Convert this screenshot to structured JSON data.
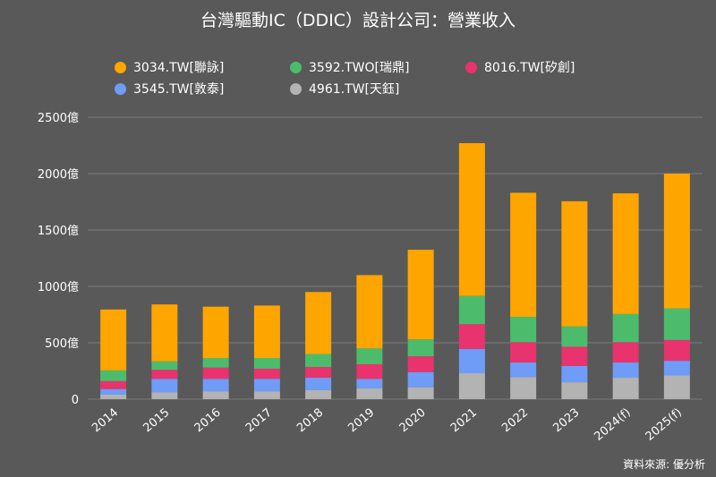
{
  "chart_data": {
    "type": "bar",
    "stacked": true,
    "title": "台灣驅動IC（DDIC）設計公司：營業收入",
    "source": "資料來源: 優分析",
    "categories": [
      "2014",
      "2015",
      "2016",
      "2017",
      "2018",
      "2019",
      "2020",
      "2021",
      "2022",
      "2023",
      "2024(f)",
      "2025(f)"
    ],
    "ylim": [
      0,
      2500
    ],
    "yticks": [
      0,
      500,
      1000,
      1500,
      2000,
      2500
    ],
    "ytick_labels": [
      "0",
      "500億",
      "1000億",
      "1500億",
      "2000億",
      "2500億"
    ],
    "grid": true,
    "legend_position": "top",
    "series": [
      {
        "name": "4961.TW[天鈺]",
        "color": "#b3b3b3",
        "values": [
          40,
          60,
          70,
          70,
          80,
          95,
          105,
          230,
          195,
          150,
          190,
          210
        ]
      },
      {
        "name": "3545.TW[敦泰]",
        "color": "#6f9cf6",
        "values": [
          50,
          120,
          110,
          110,
          110,
          85,
          135,
          215,
          130,
          145,
          135,
          130
        ]
      },
      {
        "name": "8016.TW[矽創]",
        "color": "#e8336e",
        "values": [
          70,
          80,
          100,
          90,
          95,
          130,
          140,
          220,
          180,
          170,
          180,
          185
        ]
      },
      {
        "name": "3592.TWO[瑞鼎]",
        "color": "#4cbc6c",
        "values": [
          95,
          75,
          85,
          95,
          115,
          140,
          150,
          250,
          225,
          180,
          250,
          280
        ]
      },
      {
        "name": "3034.TW[聯詠]",
        "color": "#ffa500",
        "values": [
          540,
          505,
          455,
          465,
          550,
          650,
          795,
          1355,
          1100,
          1110,
          1070,
          1195
        ]
      }
    ],
    "legend_order": [
      {
        "name": "3034.TW[聯詠]",
        "color": "#ffa500"
      },
      {
        "name": "3592.TWO[瑞鼎]",
        "color": "#4cbc6c"
      },
      {
        "name": "8016.TW[矽創]",
        "color": "#e8336e"
      },
      {
        "name": "3545.TW[敦泰]",
        "color": "#6f9cf6"
      },
      {
        "name": "4961.TW[天鈺]",
        "color": "#b3b3b3"
      }
    ]
  }
}
